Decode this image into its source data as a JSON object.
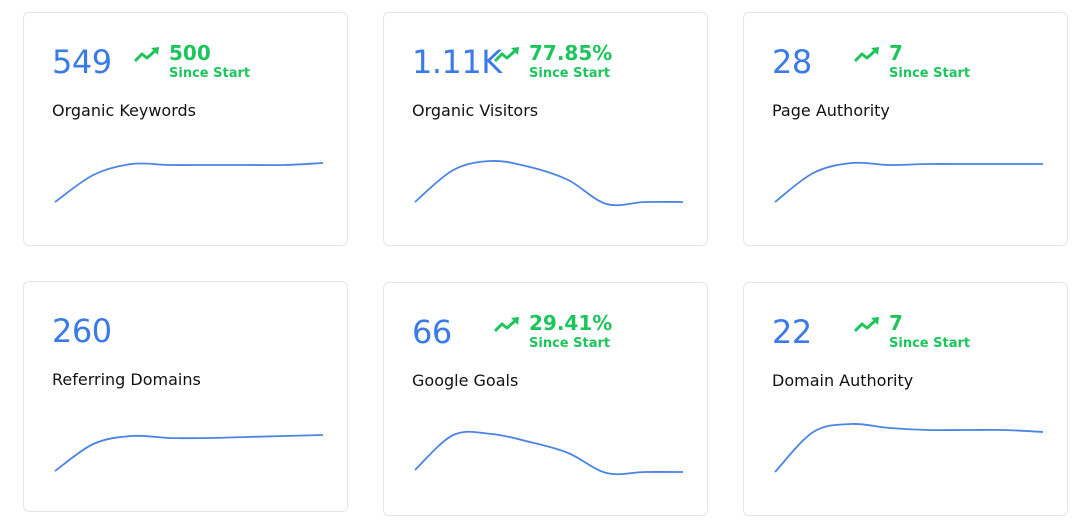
{
  "colors": {
    "primary": "#3a7be6",
    "positive": "#1ec45c",
    "line": "#4a84e4"
  },
  "cards": [
    {
      "value": "549",
      "delta": "500",
      "since": "Since Start",
      "label": "Organic Keywords",
      "spark": [
        3,
        30,
        41,
        40,
        40,
        40,
        40,
        42
      ]
    },
    {
      "value": "1.11K",
      "delta": "77.85%",
      "since": "Since Start",
      "label": "Organic Visitors",
      "spark": [
        3,
        35,
        44,
        38,
        25,
        1,
        3,
        3
      ]
    },
    {
      "value": "28",
      "delta": "7",
      "since": "Since Start",
      "label": "Page Authority",
      "spark": [
        3,
        32,
        42,
        40,
        41,
        41,
        41,
        41
      ]
    },
    {
      "value": "260",
      "label": "Referring Domains",
      "spark": [
        3,
        30,
        38,
        36,
        36,
        37,
        38,
        39
      ]
    },
    {
      "value": "66",
      "delta": "29.41%",
      "since": "Since Start",
      "label": "Google Goals",
      "spark": [
        5,
        40,
        41,
        33,
        22,
        2,
        3,
        3
      ]
    },
    {
      "value": "22",
      "delta": "7",
      "since": "Since Start",
      "label": "Domain Authority",
      "spark": [
        3,
        43,
        51,
        47,
        45,
        45,
        45,
        43
      ]
    }
  ]
}
